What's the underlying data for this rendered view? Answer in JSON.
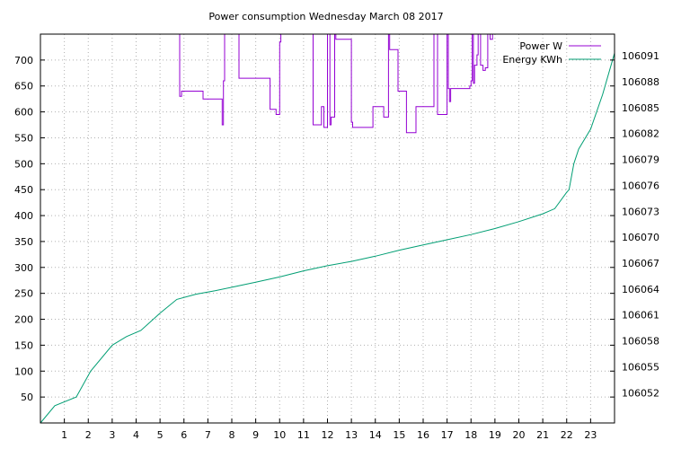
{
  "chart_data": {
    "type": "line",
    "title": "Power consumption Wednesday March 08 2017",
    "grid": true,
    "legend_position": "top-right",
    "x_axis": {
      "range": [
        0,
        24
      ],
      "ticks": [
        1,
        2,
        3,
        4,
        5,
        6,
        7,
        8,
        9,
        10,
        11,
        12,
        13,
        14,
        15,
        16,
        17,
        18,
        19,
        20,
        21,
        22,
        23
      ]
    },
    "y_left": {
      "range": [
        0,
        750
      ],
      "ticks": [
        50,
        100,
        150,
        200,
        250,
        300,
        350,
        400,
        450,
        500,
        550,
        600,
        650,
        700
      ]
    },
    "y_right": {
      "range": [
        106048.5,
        106093.5
      ],
      "ticks": [
        106052,
        106055,
        106058,
        106061,
        106064,
        106067,
        106070,
        106073,
        106076,
        106079,
        106082,
        106085,
        106088,
        106091
      ]
    },
    "series": [
      {
        "name": "Power W",
        "axis": "left",
        "color": "#9400d3",
        "step": true,
        "x": [
          5.8,
          5.82,
          5.9,
          5.95,
          6.3,
          6.8,
          6.85,
          7.55,
          7.6,
          7.65,
          7.7,
          8.3,
          8.35,
          9.0,
          9.1,
          9.6,
          9.65,
          9.8,
          9.85,
          10.0,
          10.05,
          10.7,
          10.75,
          11.4,
          11.45,
          11.7,
          11.75,
          11.8,
          11.85,
          11.95,
          12.0,
          12.1,
          12.15,
          12.3,
          12.35,
          12.95,
          13.0,
          13.05,
          13.1,
          13.85,
          13.9,
          14.3,
          14.35,
          14.55,
          14.6,
          14.9,
          14.95,
          15.3,
          15.35,
          15.7,
          15.75,
          16.4,
          16.45,
          16.6,
          16.65,
          17.0,
          17.05,
          17.1,
          17.15,
          17.9,
          17.95,
          18.0,
          18.05,
          18.1,
          18.15,
          18.25,
          18.3,
          18.4,
          18.5,
          18.6,
          18.7,
          18.8,
          18.9
        ],
        "y": [
          750,
          630,
          640,
          640,
          640,
          625,
          625,
          625,
          575,
          660,
          750,
          665,
          665,
          665,
          665,
          605,
          605,
          605,
          595,
          735,
          750,
          750,
          750,
          575,
          575,
          575,
          610,
          610,
          570,
          570,
          750,
          575,
          590,
          750,
          740,
          740,
          580,
          570,
          570,
          570,
          610,
          610,
          590,
          750,
          720,
          720,
          640,
          560,
          560,
          610,
          610,
          610,
          750,
          595,
          595,
          750,
          645,
          620,
          645,
          645,
          650,
          660,
          750,
          655,
          690,
          710,
          750,
          690,
          680,
          685,
          750,
          740,
          750
        ]
      },
      {
        "name": "Energy KWh",
        "axis": "right",
        "color": "#009e73",
        "x": [
          0,
          0.6,
          1.5,
          2.1,
          3.0,
          3.6,
          4.2,
          5.0,
          5.7,
          6.5,
          7.3,
          8.0,
          9.0,
          10.0,
          11.0,
          12.0,
          13.0,
          14.0,
          15.0,
          16.0,
          17.0,
          18.0,
          19.0,
          20.0,
          21.0,
          21.5,
          22.0,
          22.1,
          22.3,
          22.5,
          23.0,
          23.5,
          24.0
        ],
        "y": [
          106048.5,
          106050.5,
          106051.5,
          106054.5,
          106057.5,
          106058.5,
          106059.2,
          106061.2,
          106062.8,
          106063.4,
          106063.8,
          106064.2,
          106064.8,
          106065.4,
          106066.1,
          106066.7,
          106067.2,
          106067.8,
          106068.5,
          106069.1,
          106069.7,
          106070.3,
          106071.0,
          106071.8,
          106072.7,
          106073.3,
          106075.2,
          106075.5,
          106078.5,
          106080.2,
          106082.5,
          106086.5,
          106091.3
        ]
      }
    ]
  }
}
